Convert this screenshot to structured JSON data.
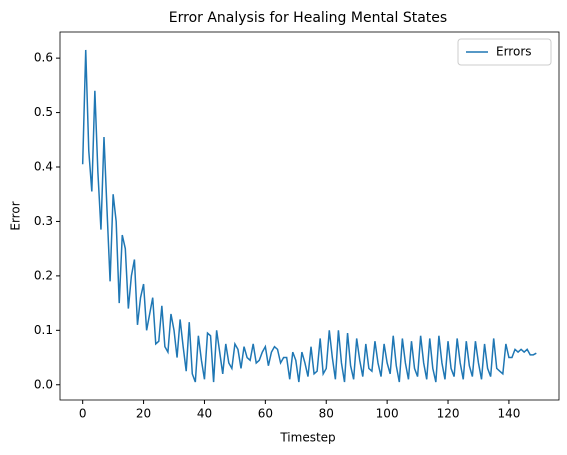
{
  "chart_data": {
    "type": "line",
    "title": "Error Analysis for Healing Mental States",
    "x_label": "Timestep",
    "y_label": "Error",
    "x": [
      0,
      1,
      2,
      3,
      4,
      5,
      6,
      7,
      8,
      9,
      10,
      11,
      12,
      13,
      14,
      15,
      16,
      17,
      18,
      19,
      20,
      21,
      22,
      23,
      24,
      25,
      26,
      27,
      28,
      29,
      30,
      31,
      32,
      33,
      34,
      35,
      36,
      37,
      38,
      39,
      40,
      41,
      42,
      43,
      44,
      45,
      46,
      47,
      48,
      49,
      50,
      51,
      52,
      53,
      54,
      55,
      56,
      57,
      58,
      59,
      60,
      61,
      62,
      63,
      64,
      65,
      66,
      67,
      68,
      69,
      70,
      71,
      72,
      73,
      74,
      75,
      76,
      77,
      78,
      79,
      80,
      81,
      82,
      83,
      84,
      85,
      86,
      87,
      88,
      89,
      90,
      91,
      92,
      93,
      94,
      95,
      96,
      97,
      98,
      99,
      100,
      101,
      102,
      103,
      104,
      105,
      106,
      107,
      108,
      109,
      110,
      111,
      112,
      113,
      114,
      115,
      116,
      117,
      118,
      119,
      120,
      121,
      122,
      123,
      124,
      125,
      126,
      127,
      128,
      129,
      130,
      131,
      132,
      133,
      134,
      135,
      136,
      137,
      138,
      139,
      140,
      141,
      142,
      143,
      144,
      145,
      146,
      147,
      148,
      149
    ],
    "series": [
      {
        "name": "Errors",
        "color": "#1f77b4",
        "values": [
          0.405,
          0.615,
          0.43,
          0.355,
          0.54,
          0.39,
          0.285,
          0.455,
          0.32,
          0.19,
          0.35,
          0.3,
          0.15,
          0.275,
          0.25,
          0.14,
          0.2,
          0.23,
          0.11,
          0.16,
          0.185,
          0.1,
          0.13,
          0.16,
          0.075,
          0.08,
          0.145,
          0.07,
          0.06,
          0.13,
          0.1,
          0.05,
          0.12,
          0.07,
          0.025,
          0.115,
          0.02,
          0.005,
          0.09,
          0.045,
          0.01,
          0.095,
          0.09,
          0.005,
          0.1,
          0.06,
          0.02,
          0.075,
          0.04,
          0.03,
          0.075,
          0.065,
          0.03,
          0.07,
          0.05,
          0.045,
          0.075,
          0.04,
          0.045,
          0.06,
          0.07,
          0.035,
          0.06,
          0.07,
          0.065,
          0.04,
          0.05,
          0.05,
          0.01,
          0.06,
          0.045,
          0.005,
          0.06,
          0.04,
          0.015,
          0.07,
          0.02,
          0.025,
          0.085,
          0.02,
          0.03,
          0.1,
          0.05,
          0.01,
          0.1,
          0.04,
          0.005,
          0.095,
          0.035,
          0.01,
          0.085,
          0.045,
          0.015,
          0.075,
          0.03,
          0.025,
          0.08,
          0.04,
          0.015,
          0.075,
          0.04,
          0.02,
          0.09,
          0.035,
          0.005,
          0.085,
          0.04,
          0.01,
          0.08,
          0.03,
          0.015,
          0.09,
          0.04,
          0.01,
          0.085,
          0.03,
          0.005,
          0.09,
          0.04,
          0.01,
          0.08,
          0.03,
          0.015,
          0.085,
          0.04,
          0.01,
          0.08,
          0.035,
          0.015,
          0.08,
          0.04,
          0.01,
          0.075,
          0.03,
          0.015,
          0.085,
          0.03,
          0.025,
          0.02,
          0.075,
          0.05,
          0.05,
          0.065,
          0.06,
          0.065,
          0.06,
          0.065,
          0.055,
          0.055,
          0.058
        ]
      }
    ],
    "xlim": [
      -7.45,
      156.45
    ],
    "xticks": [
      0,
      20,
      40,
      60,
      80,
      100,
      120,
      140
    ],
    "ylim": [
      -0.028,
      0.648
    ],
    "yticks": [
      0.0,
      0.1,
      0.2,
      0.3,
      0.4,
      0.5,
      0.6
    ],
    "legend": "upper right",
    "grid": false
  }
}
